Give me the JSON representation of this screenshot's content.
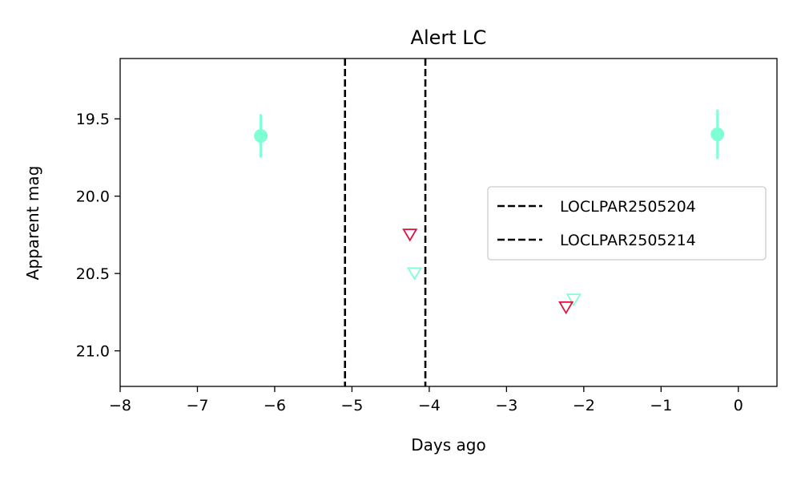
{
  "chart_data": {
    "type": "scatter",
    "title": "Alert LC",
    "xlabel": "Days ago",
    "ylabel": "Apparent mag",
    "xlim": [
      -8,
      0.5
    ],
    "ylim": [
      21.23,
      19.11
    ],
    "y_inverted": true,
    "grid": false,
    "xticks": [
      -8,
      -7,
      -6,
      -5,
      -4,
      -3,
      -2,
      -1,
      0
    ],
    "xtick_labels": [
      "−8",
      "−7",
      "−6",
      "−5",
      "−4",
      "−3",
      "−2",
      "−1",
      "0"
    ],
    "yticks": [
      19.5,
      20.0,
      20.5,
      21.0
    ],
    "ytick_labels": [
      "19.5",
      "20.0",
      "20.5",
      "21.0"
    ],
    "detections": [
      {
        "x": -6.18,
        "y": 19.61,
        "err": 0.14,
        "color": "#7fffd4"
      },
      {
        "x": -0.27,
        "y": 19.6,
        "err": 0.16,
        "color": "#7fffd4"
      }
    ],
    "upper_limits": [
      {
        "x": -4.25,
        "y": 20.25,
        "color": "#dc143c"
      },
      {
        "x": -4.19,
        "y": 20.5,
        "color": "#7fffd4"
      },
      {
        "x": -2.13,
        "y": 20.67,
        "color": "#7fffd4"
      },
      {
        "x": -2.23,
        "y": 20.72,
        "color": "#dc143c"
      }
    ],
    "vlines": [
      {
        "x": -5.09,
        "label": "LOCLPAR2505204",
        "color": "#000000",
        "style": "dashed"
      },
      {
        "x": -4.05,
        "label": "LOCLPAR2505214",
        "color": "#000000",
        "style": "dashed"
      }
    ],
    "legend": {
      "position": "center-right",
      "entries": [
        "LOCLPAR2505204",
        "LOCLPAR2505214"
      ]
    }
  }
}
